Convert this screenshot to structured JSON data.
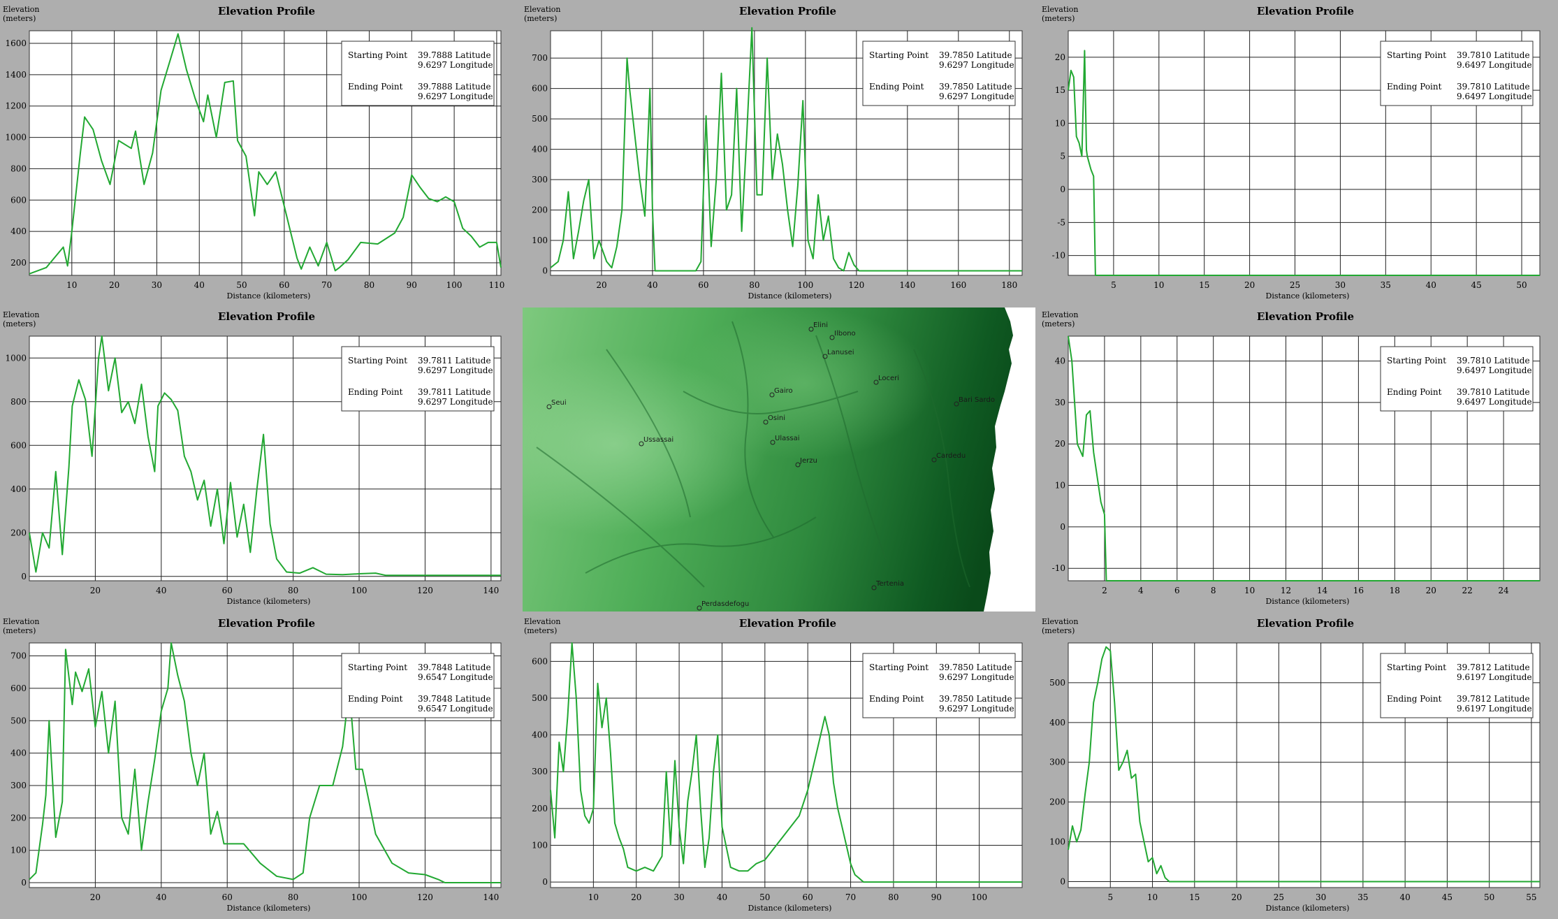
{
  "colors": {
    "background": "#aeaeae",
    "plot": "#ffffff",
    "line": "#22a832",
    "grid": "#222222"
  },
  "chart_data": [
    {
      "type": "line",
      "title": "Elevation Profile",
      "ylabel": "Elevation (meters)",
      "xlabel": "Distance (kilometers)",
      "xlim": [
        0,
        111
      ],
      "ylim": [
        120,
        1680
      ],
      "xticks": [
        10,
        20,
        30,
        40,
        50,
        60,
        70,
        80,
        90,
        100,
        110
      ],
      "yticks": [
        200,
        400,
        600,
        800,
        1000,
        1200,
        1400,
        1600
      ],
      "legend": {
        "start_label": "Starting Point",
        "start_lat": "39.7888 Latitude",
        "start_lon": "9.6297 Longitude",
        "end_label": "Ending Point",
        "end_lat": "39.7888 Latitude",
        "end_lon": "9.6297 Longitude"
      },
      "x": [
        0,
        4,
        8,
        9,
        10,
        12,
        13,
        15,
        17,
        19,
        21,
        24,
        25,
        27,
        29,
        31,
        33,
        35,
        37,
        39,
        41,
        42,
        44,
        46,
        48,
        49,
        51,
        53,
        54,
        56,
        58,
        60,
        63,
        64,
        66,
        68,
        70,
        72,
        73,
        75,
        78,
        82,
        86,
        88,
        90,
        92,
        94,
        96,
        98,
        100,
        102,
        104,
        106,
        108,
        110,
        111
      ],
      "y": [
        130,
        170,
        300,
        180,
        400,
        900,
        1130,
        1050,
        850,
        700,
        980,
        930,
        1040,
        700,
        900,
        1300,
        1480,
        1660,
        1430,
        1250,
        1100,
        1270,
        1000,
        1350,
        1360,
        980,
        880,
        500,
        780,
        700,
        780,
        560,
        230,
        160,
        300,
        180,
        330,
        150,
        170,
        220,
        330,
        320,
        390,
        490,
        760,
        680,
        610,
        590,
        620,
        590,
        420,
        370,
        300,
        330,
        330,
        170
      ],
      "xlabels": [
        "10",
        "20",
        "30",
        "40",
        "50",
        "60",
        "70",
        "80",
        "90",
        "100",
        "110"
      ],
      "ylabels": [
        "200",
        "400",
        "600",
        "800",
        "1000",
        "1200",
        "1400",
        "1600"
      ]
    },
    {
      "type": "line",
      "title": "Elevation Profile",
      "ylabel": "Elevation (meters)",
      "xlabel": "Distance (kilometers)",
      "xlim": [
        0,
        185
      ],
      "ylim": [
        -15,
        790
      ],
      "xticks": [
        20,
        40,
        60,
        80,
        100,
        120,
        140,
        160,
        180
      ],
      "yticks": [
        0,
        100,
        200,
        300,
        400,
        500,
        600,
        700
      ],
      "legend": {
        "start_label": "Starting Point",
        "start_lat": "39.7850 Latitude",
        "start_lon": "9.6297 Longitude",
        "end_label": "Ending Point",
        "end_lat": "39.7850 Latitude",
        "end_lon": "9.6297 Longitude"
      },
      "x": [
        0,
        3,
        5,
        7,
        9,
        11,
        13,
        15,
        17,
        19,
        22,
        24,
        26,
        28,
        30,
        31,
        33,
        35,
        37,
        39,
        40,
        41,
        43,
        45,
        47,
        49,
        51,
        53,
        55,
        57,
        59,
        61,
        63,
        65,
        67,
        69,
        71,
        73,
        75,
        77,
        79,
        81,
        83,
        85,
        87,
        89,
        91,
        93,
        95,
        97,
        99,
        101,
        103,
        105,
        107,
        109,
        111,
        113,
        115,
        117,
        119,
        121,
        123,
        185
      ],
      "y": [
        10,
        30,
        100,
        260,
        40,
        130,
        230,
        300,
        40,
        100,
        30,
        10,
        80,
        200,
        700,
        600,
        450,
        300,
        180,
        600,
        200,
        0,
        0,
        0,
        0,
        0,
        0,
        0,
        0,
        0,
        30,
        510,
        80,
        300,
        650,
        200,
        250,
        600,
        130,
        450,
        800,
        250,
        250,
        700,
        300,
        450,
        350,
        200,
        80,
        280,
        560,
        100,
        40,
        250,
        100,
        180,
        40,
        10,
        0,
        60,
        20,
        0,
        0,
        0
      ],
      "xlabels": [
        "20",
        "40",
        "60",
        "80",
        "100",
        "120",
        "140",
        "160",
        "180"
      ],
      "ylabels": [
        "0",
        "100",
        "200",
        "300",
        "400",
        "500",
        "600",
        "700"
      ]
    },
    {
      "type": "line",
      "title": "Elevation Profile",
      "ylabel": "Elevation (meters)",
      "xlabel": "Distance (kilometers)",
      "xlim": [
        0,
        52
      ],
      "ylim": [
        -13,
        24
      ],
      "xticks": [
        5,
        10,
        15,
        20,
        25,
        30,
        35,
        40,
        45,
        50
      ],
      "yticks": [
        -10,
        -5,
        0,
        5,
        10,
        15,
        20
      ],
      "legend": {
        "start_label": "Starting Point",
        "start_lat": "39.7810 Latitude",
        "start_lon": "9.6497 Longitude",
        "end_label": "Ending Point",
        "end_lat": "39.7810 Latitude",
        "end_lon": "9.6497 Longitude"
      },
      "x": [
        0,
        0.3,
        0.6,
        0.9,
        1.2,
        1.5,
        1.8,
        2.0,
        2.1,
        2.3,
        2.5,
        2.8,
        3.0,
        3.1,
        52
      ],
      "y": [
        15,
        18,
        17,
        8,
        7,
        5,
        21,
        6,
        5,
        4,
        3,
        2,
        -13,
        -13,
        -13
      ],
      "xlabels": [
        "5",
        "10",
        "15",
        "20",
        "25",
        "30",
        "35",
        "40",
        "45",
        "50"
      ],
      "ylabels": [
        "-10",
        "-5",
        "0",
        "5",
        "10",
        "15",
        "20"
      ]
    },
    {
      "type": "line",
      "title": "Elevation Profile",
      "ylabel": "Elevation (meters)",
      "xlabel": "Distance (kilometers)",
      "xlim": [
        0,
        143
      ],
      "ylim": [
        -20,
        1100
      ],
      "xticks": [
        20,
        40,
        60,
        80,
        100,
        120,
        140
      ],
      "yticks": [
        0,
        200,
        400,
        600,
        800,
        1000
      ],
      "legend": {
        "start_label": "Starting Point",
        "start_lat": "39.7811 Latitude",
        "start_lon": "9.6297 Longitude",
        "end_label": "Ending Point",
        "end_lat": "39.7811 Latitude",
        "end_lon": "9.6297 Longitude"
      },
      "x": [
        0,
        2,
        4,
        6,
        8,
        10,
        12,
        13,
        15,
        17,
        19,
        21,
        22,
        24,
        26,
        28,
        30,
        32,
        34,
        36,
        38,
        39,
        41,
        43,
        45,
        47,
        49,
        51,
        53,
        55,
        57,
        59,
        61,
        63,
        65,
        67,
        69,
        71,
        73,
        75,
        78,
        82,
        86,
        90,
        95,
        100,
        105,
        108,
        110,
        143
      ],
      "y": [
        200,
        20,
        200,
        130,
        480,
        100,
        500,
        780,
        900,
        810,
        550,
        1000,
        1100,
        850,
        1000,
        750,
        800,
        700,
        880,
        640,
        480,
        780,
        840,
        810,
        760,
        550,
        480,
        350,
        440,
        230,
        400,
        150,
        430,
        180,
        330,
        110,
        400,
        650,
        240,
        80,
        20,
        15,
        40,
        10,
        8,
        12,
        15,
        5,
        5,
        5
      ],
      "xlabels": [
        "20",
        "40",
        "60",
        "80",
        "100",
        "120",
        "140"
      ],
      "ylabels": [
        "0",
        "200",
        "400",
        "600",
        "800",
        "1000"
      ]
    },
    {
      "type": "line",
      "title": "Elevation Profile",
      "ylabel": "Elevation (meters)",
      "xlabel": "Distance (kilometers)",
      "xlim": [
        0,
        26
      ],
      "ylim": [
        -13,
        46
      ],
      "xticks": [
        2,
        4,
        6,
        8,
        10,
        12,
        14,
        16,
        18,
        20,
        22,
        24
      ],
      "yticks": [
        -10,
        0,
        10,
        20,
        30,
        40
      ],
      "legend": {
        "start_label": "Starting Point",
        "start_lat": "39.7810 Latitude",
        "start_lon": "9.6497 Longitude",
        "end_label": "Ending Point",
        "end_lat": "39.7810 Latitude",
        "end_lon": "9.6497 Longitude"
      },
      "x": [
        0,
        0.2,
        0.5,
        0.8,
        1.0,
        1.2,
        1.4,
        1.6,
        1.8,
        2.0,
        2.1,
        26
      ],
      "y": [
        46,
        40,
        20,
        17,
        27,
        28,
        18,
        12,
        6,
        3,
        -13,
        -13
      ],
      "xlabels": [
        "2",
        "4",
        "6",
        "8",
        "10",
        "12",
        "14",
        "16",
        "18",
        "20",
        "22",
        "24"
      ],
      "ylabels": [
        "-10",
        "0",
        "10",
        "20",
        "30",
        "40"
      ]
    },
    {
      "type": "line",
      "title": "Elevation Profile",
      "ylabel": "Elevation (meters)",
      "xlabel": "Distance (kilometers)",
      "xlim": [
        0,
        143
      ],
      "ylim": [
        -15,
        740
      ],
      "xticks": [
        20,
        40,
        60,
        80,
        100,
        120,
        140
      ],
      "yticks": [
        0,
        100,
        200,
        300,
        400,
        500,
        600,
        700
      ],
      "legend": {
        "start_label": "Starting Point",
        "start_lat": "39.7848 Latitude",
        "start_lon": "9.6547 Longitude",
        "end_label": "Ending Point",
        "end_lat": "39.7848 Latitude",
        "end_lon": "9.6547 Longitude"
      },
      "x": [
        0,
        2,
        4,
        5,
        6,
        8,
        10,
        11,
        13,
        14,
        16,
        18,
        20,
        22,
        24,
        26,
        28,
        30,
        32,
        34,
        36,
        38,
        40,
        42,
        43,
        45,
        47,
        49,
        51,
        53,
        55,
        57,
        59,
        61,
        65,
        70,
        75,
        80,
        83,
        85,
        88,
        92,
        95,
        97,
        99,
        101,
        103,
        105,
        110,
        115,
        120,
        124,
        126,
        143
      ],
      "y": [
        10,
        30,
        180,
        270,
        500,
        140,
        250,
        720,
        550,
        650,
        590,
        660,
        480,
        590,
        400,
        560,
        200,
        150,
        350,
        100,
        250,
        380,
        530,
        600,
        740,
        640,
        560,
        400,
        300,
        400,
        150,
        220,
        120,
        120,
        120,
        60,
        20,
        10,
        30,
        200,
        300,
        300,
        420,
        600,
        350,
        350,
        250,
        150,
        60,
        30,
        25,
        10,
        0,
        0
      ],
      "xlabels": [
        "20",
        "40",
        "60",
        "80",
        "100",
        "120",
        "140"
      ],
      "ylabels": [
        "0",
        "100",
        "200",
        "300",
        "400",
        "500",
        "600",
        "700"
      ]
    },
    {
      "type": "line",
      "title": "Elevation Profile",
      "ylabel": "Elevation (meters)",
      "xlabel": "Distance (kilometers)",
      "xlim": [
        0,
        110
      ],
      "ylim": [
        -15,
        650
      ],
      "xticks": [
        10,
        20,
        30,
        40,
        50,
        60,
        70,
        80,
        90,
        100
      ],
      "yticks": [
        0,
        100,
        200,
        300,
        400,
        500,
        600
      ],
      "legend": {
        "start_label": "Starting Point",
        "start_lat": "39.7850 Latitude",
        "start_lon": "9.6297 Longitude",
        "end_label": "Ending Point",
        "end_lat": "39.7850 Latitude",
        "end_lon": "9.6297 Longitude"
      },
      "x": [
        0,
        1,
        2,
        3,
        4,
        5,
        6,
        7,
        8,
        9,
        10,
        11,
        12,
        13,
        14,
        15,
        16,
        17,
        18,
        20,
        22,
        24,
        26,
        27,
        28,
        29,
        30,
        31,
        32,
        33,
        34,
        35,
        36,
        37,
        38,
        39,
        40,
        42,
        44,
        46,
        48,
        50,
        54,
        58,
        60,
        62,
        64,
        65,
        66,
        67,
        68,
        69,
        70,
        71,
        72,
        73,
        110
      ],
      "y": [
        250,
        120,
        380,
        300,
        450,
        650,
        500,
        250,
        180,
        160,
        200,
        540,
        420,
        500,
        350,
        160,
        120,
        90,
        40,
        30,
        40,
        30,
        70,
        300,
        100,
        330,
        150,
        50,
        220,
        300,
        400,
        200,
        40,
        120,
        300,
        400,
        150,
        40,
        30,
        30,
        50,
        60,
        120,
        180,
        250,
        350,
        450,
        400,
        270,
        200,
        150,
        100,
        50,
        20,
        10,
        0,
        0
      ],
      "xlabels": [
        "10",
        "20",
        "30",
        "40",
        "50",
        "60",
        "70",
        "80",
        "90",
        "100"
      ],
      "ylabels": [
        "0",
        "100",
        "200",
        "300",
        "400",
        "500",
        "600"
      ]
    },
    {
      "type": "line",
      "title": "Elevation Profile",
      "ylabel": "Elevation (meters)",
      "xlabel": "Distance (kilometers)",
      "xlim": [
        0,
        56
      ],
      "ylim": [
        -15,
        600
      ],
      "xticks": [
        5,
        10,
        15,
        20,
        25,
        30,
        35,
        40,
        45,
        50,
        55
      ],
      "yticks": [
        0,
        100,
        200,
        300,
        400,
        500
      ],
      "legend": {
        "start_label": "Starting Point",
        "start_lat": "39.7812 Latitude",
        "start_lon": "9.6197 Longitude",
        "end_label": "Ending Point",
        "end_lat": "39.7812 Latitude",
        "end_lon": "9.6197 Longitude"
      },
      "x": [
        0,
        0.5,
        1,
        1.5,
        2,
        2.5,
        3,
        3.5,
        4,
        4.5,
        5,
        5.5,
        6,
        6.5,
        7,
        7.5,
        8,
        8.5,
        9,
        9.5,
        10,
        10.5,
        11,
        11.5,
        12,
        56
      ],
      "y": [
        80,
        140,
        100,
        130,
        220,
        300,
        450,
        500,
        560,
        590,
        580,
        450,
        280,
        300,
        330,
        260,
        270,
        150,
        100,
        50,
        60,
        20,
        40,
        10,
        0,
        0
      ],
      "xlabels": [
        "5",
        "10",
        "15",
        "20",
        "25",
        "30",
        "35",
        "40",
        "45",
        "50",
        "55"
      ],
      "ylabels": [
        "0",
        "100",
        "200",
        "300",
        "400",
        "500"
      ]
    }
  ],
  "map": {
    "towns": [
      "Elini",
      "Ilbono",
      "Lanusei",
      "Loceri",
      "Gairo",
      "Bari Sardo",
      "Seui",
      "Osini",
      "Ussassai",
      "Ulassai",
      "Cardedu",
      "Jerzu",
      "Tertenia",
      "Perdasdefogu"
    ]
  }
}
